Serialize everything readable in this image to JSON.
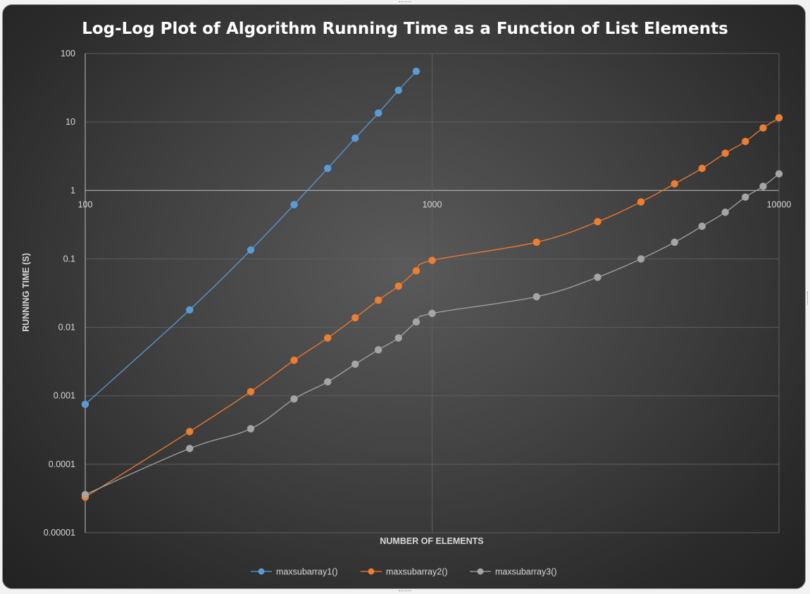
{
  "chart_data": {
    "type": "line",
    "title": "Log-Log Plot of Algorithm Running Time as a Function of List Elements",
    "xlabel": "NUMBER OF ELEMENTS",
    "ylabel": "RUNNING TIME (S)",
    "xscale": "log",
    "yscale": "log",
    "xlim": [
      100,
      10000
    ],
    "ylim": [
      1e-05,
      100
    ],
    "x_ticks": [
      {
        "value": 100,
        "label": "100"
      },
      {
        "value": 1000,
        "label": "1000"
      },
      {
        "value": 10000,
        "label": "10000"
      }
    ],
    "y_ticks": [
      {
        "value": 100,
        "label": "100"
      },
      {
        "value": 10,
        "label": "10"
      },
      {
        "value": 1,
        "label": "1"
      },
      {
        "value": 0.1,
        "label": "0.1"
      },
      {
        "value": 0.01,
        "label": "0.01"
      },
      {
        "value": 0.001,
        "label": "0.001"
      },
      {
        "value": 0.0001,
        "label": "0.0001"
      },
      {
        "value": 1e-05,
        "label": "0.00001"
      }
    ],
    "grid": true,
    "legend_position": "bottom",
    "series": [
      {
        "name": "maxsubarray1()",
        "color": "#5b9bd5",
        "points": [
          {
            "x": 100,
            "y": 0.00075
          },
          {
            "x": 200,
            "y": 0.018
          },
          {
            "x": 300,
            "y": 0.135
          },
          {
            "x": 400,
            "y": 0.62
          },
          {
            "x": 500,
            "y": 2.1
          },
          {
            "x": 600,
            "y": 5.8
          },
          {
            "x": 700,
            "y": 13.5
          },
          {
            "x": 800,
            "y": 29
          },
          {
            "x": 900,
            "y": 55
          }
        ]
      },
      {
        "name": "maxsubarray2()",
        "color": "#ed7d31",
        "points": [
          {
            "x": 100,
            "y": 3.3e-05
          },
          {
            "x": 200,
            "y": 0.0003
          },
          {
            "x": 300,
            "y": 0.00115
          },
          {
            "x": 400,
            "y": 0.0033
          },
          {
            "x": 500,
            "y": 0.007
          },
          {
            "x": 600,
            "y": 0.0138
          },
          {
            "x": 700,
            "y": 0.025
          },
          {
            "x": 800,
            "y": 0.04
          },
          {
            "x": 900,
            "y": 0.067
          },
          {
            "x": 1000,
            "y": 0.095
          },
          {
            "x": 2000,
            "y": 0.175
          },
          {
            "x": 3000,
            "y": 0.35
          },
          {
            "x": 4000,
            "y": 0.68
          },
          {
            "x": 5000,
            "y": 1.25
          },
          {
            "x": 6000,
            "y": 2.1
          },
          {
            "x": 7000,
            "y": 3.5
          },
          {
            "x": 8000,
            "y": 5.2
          },
          {
            "x": 9000,
            "y": 8.2
          },
          {
            "x": 10000,
            "y": 11.5
          }
        ]
      },
      {
        "name": "maxsubarray3()",
        "color": "#a5a5a5",
        "points": [
          {
            "x": 100,
            "y": 3.6e-05
          },
          {
            "x": 200,
            "y": 0.00017
          },
          {
            "x": 300,
            "y": 0.00033
          },
          {
            "x": 400,
            "y": 0.0009
          },
          {
            "x": 500,
            "y": 0.0016
          },
          {
            "x": 600,
            "y": 0.0029
          },
          {
            "x": 700,
            "y": 0.0047
          },
          {
            "x": 800,
            "y": 0.007
          },
          {
            "x": 900,
            "y": 0.012
          },
          {
            "x": 1000,
            "y": 0.016
          },
          {
            "x": 2000,
            "y": 0.028
          },
          {
            "x": 3000,
            "y": 0.054
          },
          {
            "x": 4000,
            "y": 0.1
          },
          {
            "x": 5000,
            "y": 0.175
          },
          {
            "x": 6000,
            "y": 0.3
          },
          {
            "x": 7000,
            "y": 0.48
          },
          {
            "x": 8000,
            "y": 0.8
          },
          {
            "x": 9000,
            "y": 1.15
          },
          {
            "x": 10000,
            "y": 1.75
          }
        ]
      }
    ]
  }
}
